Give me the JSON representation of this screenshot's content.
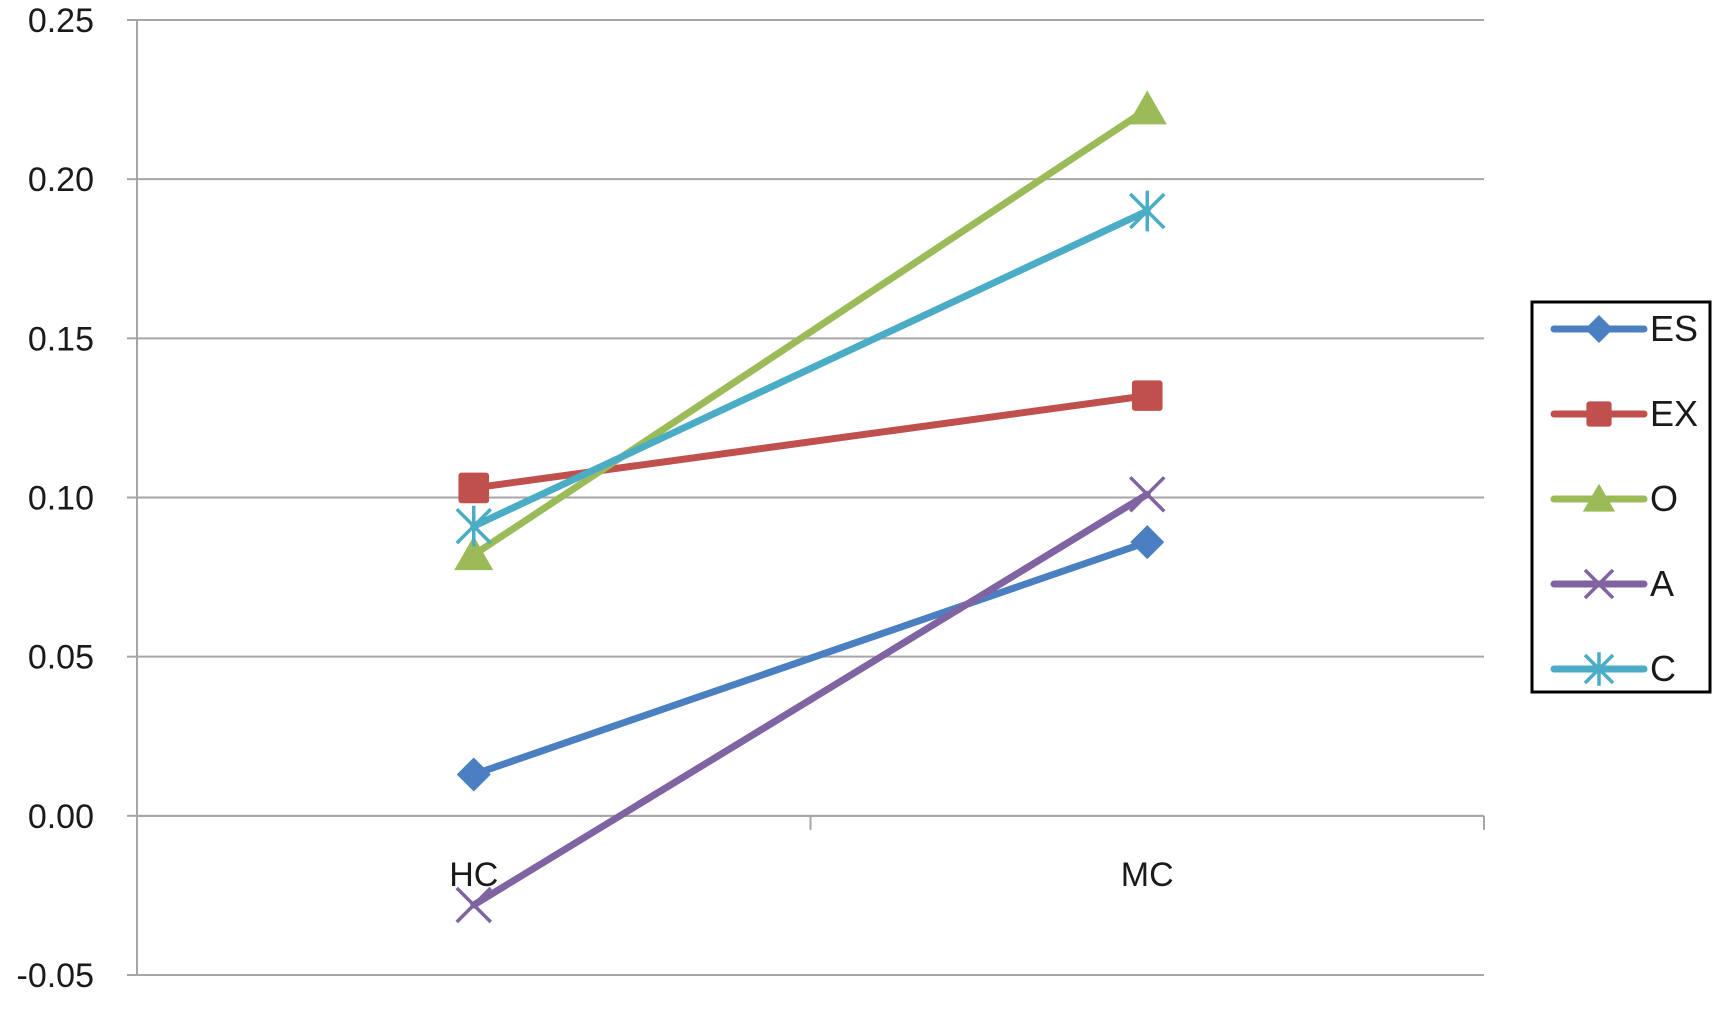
{
  "chart_data": {
    "type": "line",
    "title": "",
    "xlabel": "",
    "ylabel": "",
    "categories": [
      "HC",
      "MC"
    ],
    "ylim": [
      -0.05,
      0.25
    ],
    "yticks": [
      "-0.05",
      "0.00",
      "0.05",
      "0.10",
      "0.15",
      "0.20",
      "0.25"
    ],
    "grid": true,
    "legend_position": "right",
    "series": [
      {
        "name": "ES",
        "values": [
          0.013,
          0.086
        ],
        "color": "#4a7fc1",
        "marker": "diamond"
      },
      {
        "name": "EX",
        "values": [
          0.103,
          0.132
        ],
        "color": "#c0504d",
        "marker": "square"
      },
      {
        "name": "O",
        "values": [
          0.082,
          0.222
        ],
        "color": "#9bbb59",
        "marker": "triangle"
      },
      {
        "name": "A",
        "values": [
          -0.028,
          0.101
        ],
        "color": "#8064a2",
        "marker": "x"
      },
      {
        "name": "C",
        "values": [
          0.091,
          0.19
        ],
        "color": "#4bacc6",
        "marker": "star"
      }
    ]
  }
}
